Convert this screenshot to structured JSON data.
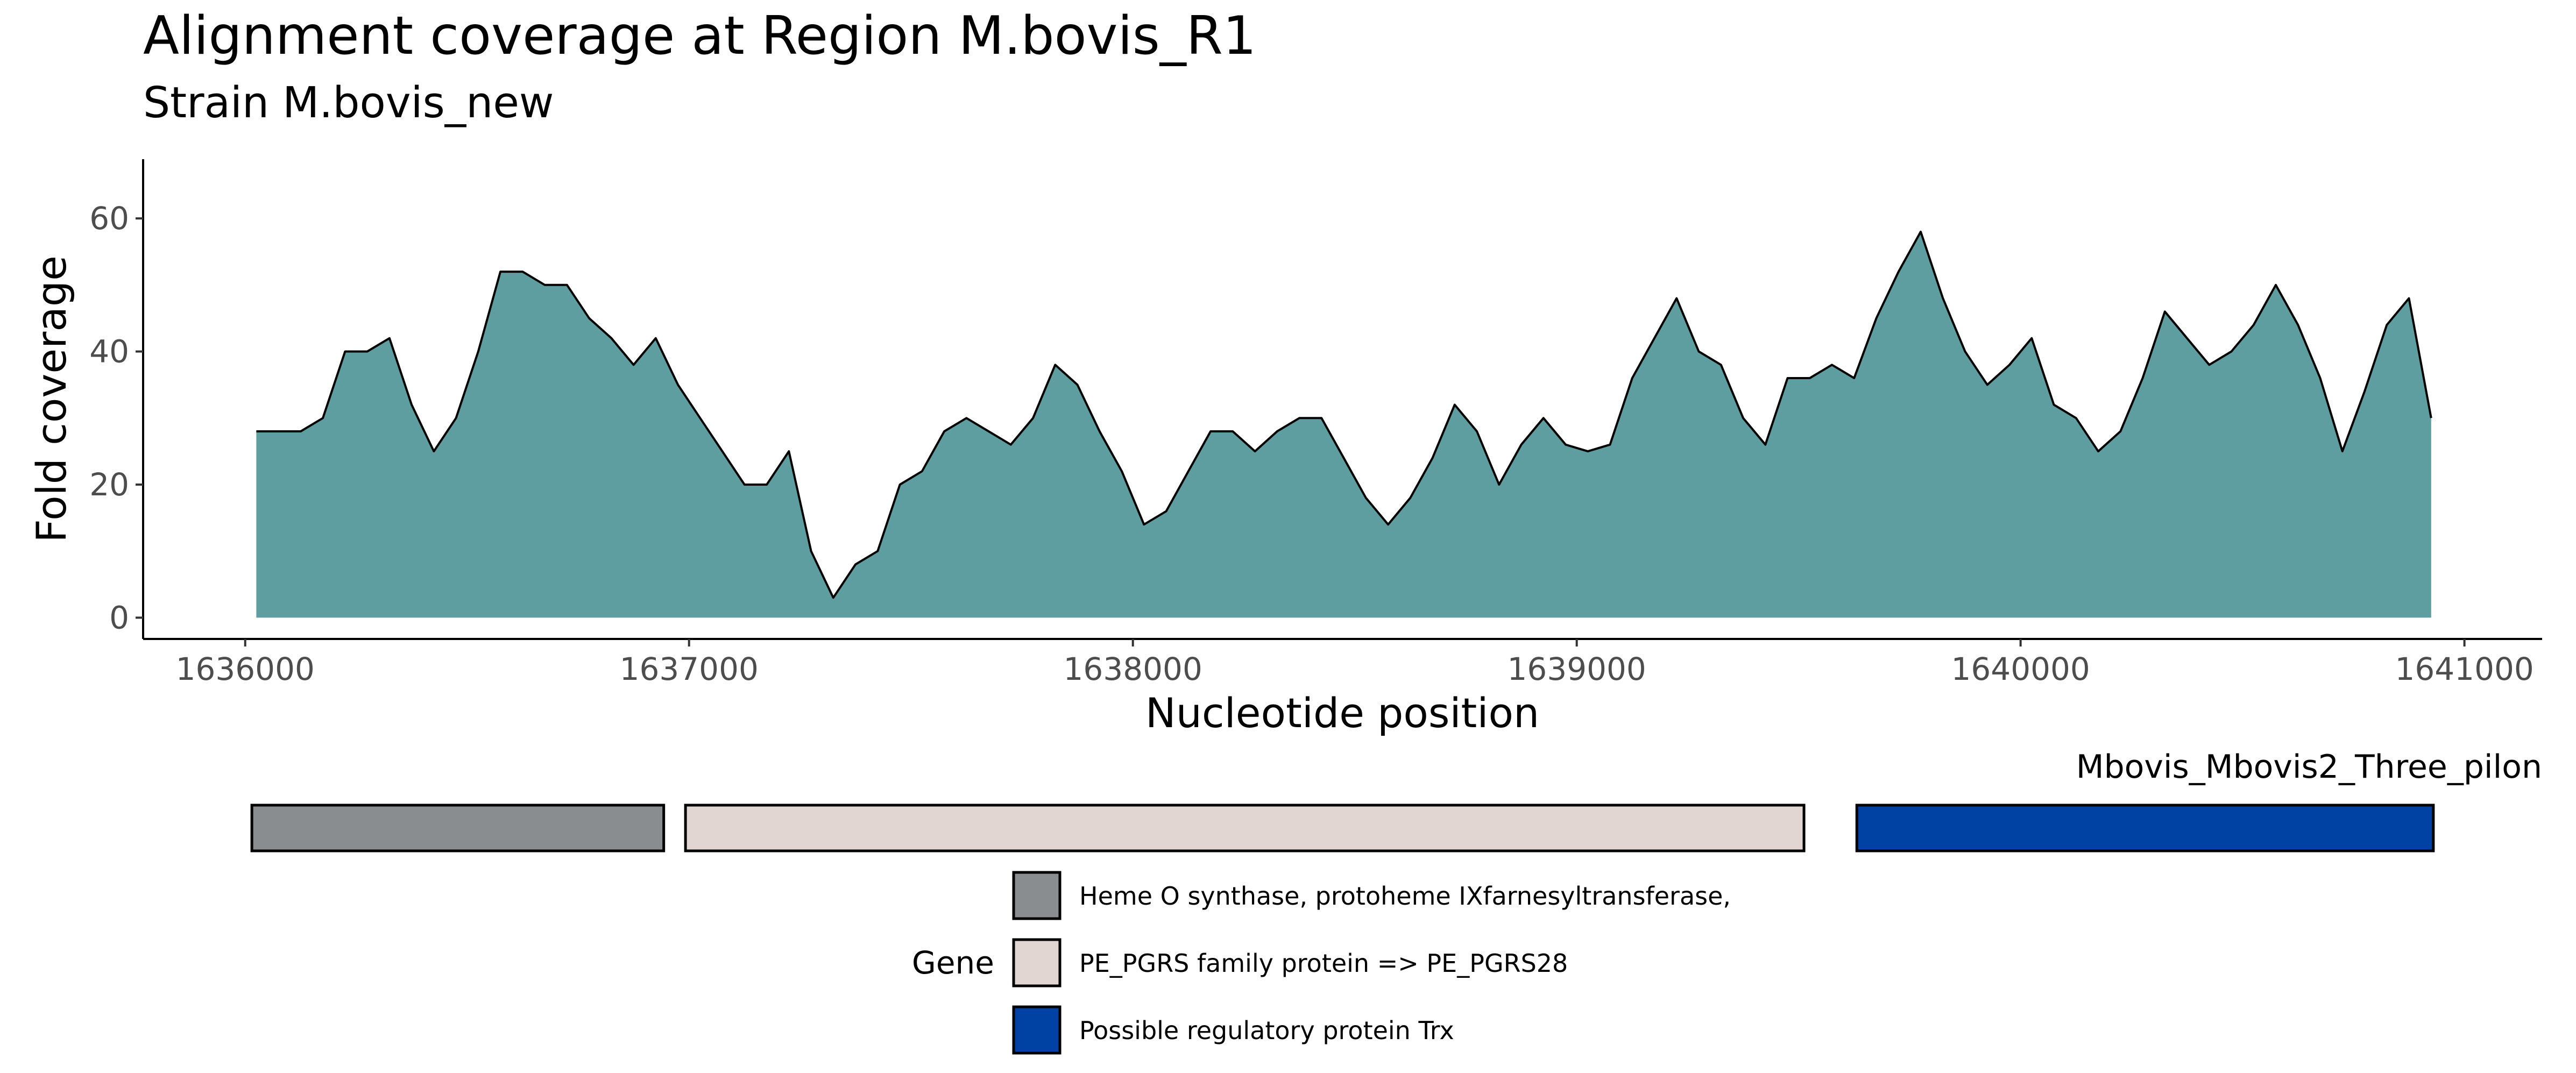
{
  "chart_data": {
    "type": "area",
    "title": "Alignment coverage at Region M.bovis_R1",
    "subtitle": "Strain M.bovis_new",
    "x_label": "Nucleotide position",
    "y_label": "Fold coverage",
    "color": "#5f9ea0",
    "line_color": "#000000",
    "x": [
      1636025,
      1636075,
      1636125,
      1636175,
      1636225,
      1636275,
      1636325,
      1636375,
      1636425,
      1636475,
      1636525,
      1636575,
      1636625,
      1636675,
      1636725,
      1636775,
      1636825,
      1636875,
      1636925,
      1636975,
      1637025,
      1637075,
      1637125,
      1637175,
      1637225,
      1637275,
      1637325,
      1637375,
      1637425,
      1637475,
      1637525,
      1637575,
      1637625,
      1637675,
      1637725,
      1637775,
      1637825,
      1637875,
      1637925,
      1637975,
      1638025,
      1638075,
      1638125,
      1638175,
      1638225,
      1638275,
      1638325,
      1638375,
      1638425,
      1638475,
      1638525,
      1638575,
      1638625,
      1638675,
      1638725,
      1638775,
      1638825,
      1638875,
      1638925,
      1638975,
      1639025,
      1639075,
      1639125,
      1639175,
      1639225,
      1639275,
      1639325,
      1639375,
      1639425,
      1639475,
      1639525,
      1639575,
      1639625,
      1639675,
      1639725,
      1639775,
      1639825,
      1639875,
      1639925,
      1639975,
      1640025,
      1640075,
      1640125,
      1640175,
      1640225,
      1640275,
      1640325,
      1640375,
      1640425,
      1640475,
      1640525,
      1640575,
      1640625,
      1640675,
      1640725,
      1640775,
      1640825,
      1640875,
      1640925
    ],
    "values": [
      28,
      28,
      28,
      30,
      40,
      40,
      42,
      32,
      25,
      30,
      40,
      52,
      52,
      50,
      50,
      45,
      42,
      38,
      42,
      35,
      30,
      25,
      20,
      20,
      25,
      10,
      3,
      8,
      10,
      20,
      22,
      28,
      30,
      28,
      26,
      30,
      38,
      35,
      28,
      22,
      14,
      16,
      22,
      28,
      28,
      25,
      28,
      30,
      30,
      24,
      18,
      14,
      18,
      24,
      32,
      28,
      20,
      26,
      30,
      26,
      25,
      26,
      36,
      42,
      48,
      40,
      38,
      30,
      26,
      36,
      36,
      38,
      36,
      45,
      52,
      58,
      48,
      40,
      35,
      38,
      42,
      32,
      30,
      25,
      28,
      36,
      46,
      42,
      38,
      40,
      44,
      50,
      44,
      36,
      25,
      34,
      44,
      48,
      30
    ],
    "xlim": [
      1635770,
      1641175
    ],
    "xticks": [
      1636000,
      1637000,
      1638000,
      1639000,
      1640000,
      1641000
    ],
    "ylim": [
      -3.2,
      68.9
    ],
    "yticks": [
      0,
      20,
      40,
      60
    ],
    "genes": {
      "track_label": "Mbovis_Mbovis2_Three_pilon",
      "legend_title": "Gene",
      "items": [
        {
          "name": "Heme O synthase, protoheme IXfarnesyltransferase,",
          "color": "#8a8d8f",
          "start": 1636015,
          "end": 1636943
        },
        {
          "name": "PE_PGRS family protein => PE_PGRS28",
          "color": "#e2d6d2",
          "start": 1636992,
          "end": 1639512
        },
        {
          "name": "Possible regulatory protein Trx",
          "color": "#0041a4",
          "start": 1639631,
          "end": 1640930
        }
      ]
    }
  }
}
